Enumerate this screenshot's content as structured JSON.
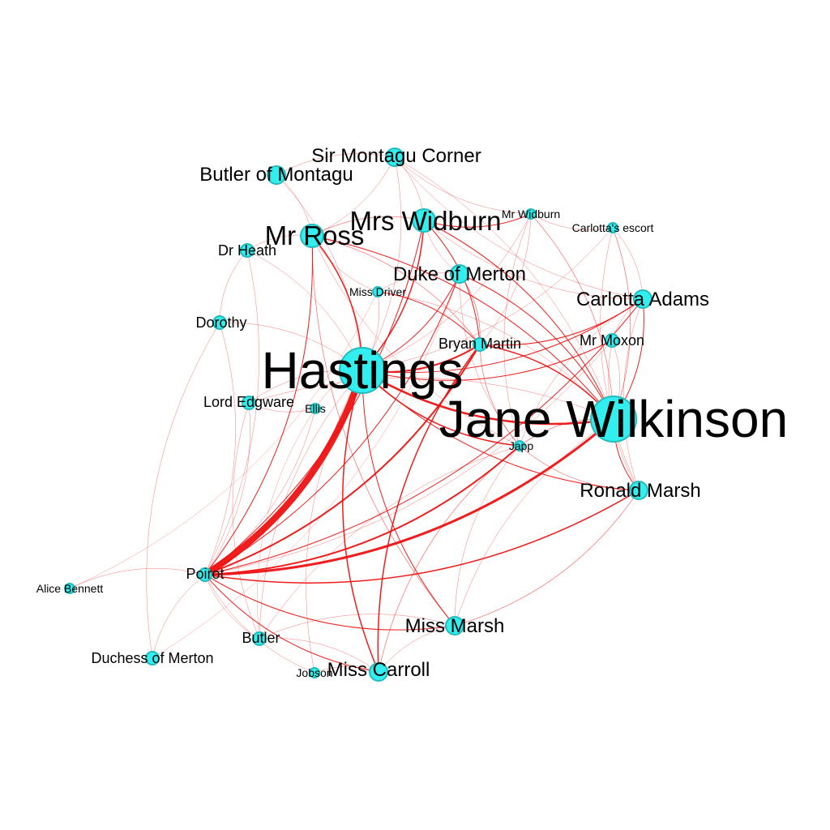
{
  "graph": {
    "colors": {
      "node_fill": "#33eeee",
      "node_stroke": "#22bbbb",
      "edge": "#ee1111",
      "label": "#000000",
      "background": "#ffffff"
    },
    "nodes": [
      {
        "id": "hastings",
        "label": "Hastings",
        "size": "xl"
      },
      {
        "id": "jane",
        "label": "Jane Wilkinson",
        "size": "xl"
      },
      {
        "id": "mrs_widburn",
        "label": "Mrs Widburn",
        "size": "l"
      },
      {
        "id": "mr_ross",
        "label": "Mr Ross",
        "size": "l"
      },
      {
        "id": "miss_marsh",
        "label": "Miss Marsh",
        "size": "m"
      },
      {
        "id": "ronald",
        "label": "Ronald Marsh",
        "size": "m"
      },
      {
        "id": "carlotta",
        "label": "Carlotta Adams",
        "size": "m"
      },
      {
        "id": "duke",
        "label": "Duke of Merton",
        "size": "m"
      },
      {
        "id": "sir_montagu",
        "label": "Sir Montagu Corner",
        "size": "m"
      },
      {
        "id": "butler_montagu",
        "label": "Butler of Montagu",
        "size": "m"
      },
      {
        "id": "miss_carroll",
        "label": "Miss Carroll",
        "size": "m"
      },
      {
        "id": "mr_moxon",
        "label": "Mr Moxon",
        "size": "s"
      },
      {
        "id": "bryan",
        "label": "Bryan Martin",
        "size": "s"
      },
      {
        "id": "poirot",
        "label": "Poirot",
        "size": "s"
      },
      {
        "id": "lord_edgware",
        "label": "Lord Edgware",
        "size": "s"
      },
      {
        "id": "dr_heath",
        "label": "Dr Heath",
        "size": "s"
      },
      {
        "id": "dorothy",
        "label": "Dorothy",
        "size": "s"
      },
      {
        "id": "butler",
        "label": "Butler",
        "size": "s"
      },
      {
        "id": "duchess",
        "label": "Duchess of Merton",
        "size": "s"
      },
      {
        "id": "mr_widburn",
        "label": "Mr Widburn",
        "size": "xs"
      },
      {
        "id": "carlottas_escort",
        "label": "Carlotta's escort",
        "size": "xs"
      },
      {
        "id": "miss_driver",
        "label": "Miss Driver",
        "size": "xs"
      },
      {
        "id": "ellis",
        "label": "Ellis",
        "size": "xs"
      },
      {
        "id": "japp",
        "label": "Japp",
        "size": "xs"
      },
      {
        "id": "alice",
        "label": "Alice Bennett",
        "size": "xs"
      },
      {
        "id": "jobson",
        "label": "Jobson",
        "size": "xs"
      }
    ],
    "edges": [
      {
        "source": "poirot",
        "target": "hastings",
        "weight": 8
      },
      {
        "source": "poirot",
        "target": "jane",
        "weight": 3
      },
      {
        "source": "poirot",
        "target": "bryan",
        "weight": 2
      },
      {
        "source": "poirot",
        "target": "japp",
        "weight": 2
      },
      {
        "source": "poirot",
        "target": "ronald",
        "weight": 1.5
      },
      {
        "source": "poirot",
        "target": "mrs_widburn",
        "weight": 1
      },
      {
        "source": "poirot",
        "target": "carlotta",
        "weight": 1
      },
      {
        "source": "poirot",
        "target": "miss_marsh",
        "weight": 1
      },
      {
        "source": "poirot",
        "target": "mr_ross",
        "weight": 1
      },
      {
        "source": "poirot",
        "target": "duke",
        "weight": 1
      },
      {
        "source": "poirot",
        "target": "miss_carroll",
        "weight": 1
      },
      {
        "source": "poirot",
        "target": "alice",
        "weight": 0.5
      },
      {
        "source": "poirot",
        "target": "duchess",
        "weight": 0.5
      },
      {
        "source": "poirot",
        "target": "butler",
        "weight": 0.5
      },
      {
        "source": "poirot",
        "target": "jobson",
        "weight": 0.5
      },
      {
        "source": "poirot",
        "target": "lord_edgware",
        "weight": 0.5
      },
      {
        "source": "poirot",
        "target": "dorothy",
        "weight": 0.5
      },
      {
        "source": "poirot",
        "target": "dr_heath",
        "weight": 0.5
      },
      {
        "source": "poirot",
        "target": "mr_moxon",
        "weight": 0.5
      },
      {
        "source": "poirot",
        "target": "ellis",
        "weight": 0.5
      },
      {
        "source": "hastings",
        "target": "jane",
        "weight": 2.5
      },
      {
        "source": "hastings",
        "target": "bryan",
        "weight": 2
      },
      {
        "source": "hastings",
        "target": "mrs_widburn",
        "weight": 1.5
      },
      {
        "source": "hastings",
        "target": "mr_ross",
        "weight": 1.5
      },
      {
        "source": "hastings",
        "target": "japp",
        "weight": 1.5
      },
      {
        "source": "hastings",
        "target": "ronald",
        "weight": 1
      },
      {
        "source": "hastings",
        "target": "carlotta",
        "weight": 1
      },
      {
        "source": "hastings",
        "target": "miss_marsh",
        "weight": 1
      },
      {
        "source": "hastings",
        "target": "miss_carroll",
        "weight": 1.5
      },
      {
        "source": "hastings",
        "target": "duke",
        "weight": 1
      },
      {
        "source": "hastings",
        "target": "mr_moxon",
        "weight": 1
      },
      {
        "source": "hastings",
        "target": "miss_driver",
        "weight": 0.5
      },
      {
        "source": "hastings",
        "target": "sir_montagu",
        "weight": 0.5
      },
      {
        "source": "hastings",
        "target": "butler_montagu",
        "weight": 0.5
      },
      {
        "source": "hastings",
        "target": "lord_edgware",
        "weight": 0.5
      },
      {
        "source": "hastings",
        "target": "ellis",
        "weight": 0.5
      },
      {
        "source": "hastings",
        "target": "dr_heath",
        "weight": 0.5
      },
      {
        "source": "hastings",
        "target": "dorothy",
        "weight": 0.5
      },
      {
        "source": "hastings",
        "target": "butler",
        "weight": 0.5
      },
      {
        "source": "hastings",
        "target": "jobson",
        "weight": 0.5
      },
      {
        "source": "hastings",
        "target": "mr_widburn",
        "weight": 0.5
      },
      {
        "source": "hastings",
        "target": "carlottas_escort",
        "weight": 0.5
      },
      {
        "source": "jane",
        "target": "bryan",
        "weight": 1.5
      },
      {
        "source": "jane",
        "target": "mrs_widburn",
        "weight": 1
      },
      {
        "source": "jane",
        "target": "mr_ross",
        "weight": 1
      },
      {
        "source": "jane",
        "target": "carlotta",
        "weight": 1
      },
      {
        "source": "jane",
        "target": "ronald",
        "weight": 1
      },
      {
        "source": "jane",
        "target": "duke",
        "weight": 1
      },
      {
        "source": "jane",
        "target": "mr_widburn",
        "weight": 0.8
      },
      {
        "source": "jane",
        "target": "carlottas_escort",
        "weight": 0.8
      },
      {
        "source": "jane",
        "target": "miss_driver",
        "weight": 0.5
      },
      {
        "source": "jane",
        "target": "sir_montagu",
        "weight": 0.5
      },
      {
        "source": "jane",
        "target": "japp",
        "weight": 0.8
      },
      {
        "source": "jane",
        "target": "miss_marsh",
        "weight": 0.5
      },
      {
        "source": "jane",
        "target": "mr_moxon",
        "weight": 0.5
      },
      {
        "source": "jane",
        "target": "lord_edgware",
        "weight": 0.5
      },
      {
        "source": "bryan",
        "target": "mrs_widburn",
        "weight": 1
      },
      {
        "source": "bryan",
        "target": "miss_carroll",
        "weight": 1.5
      },
      {
        "source": "bryan",
        "target": "carlotta",
        "weight": 1
      },
      {
        "source": "bryan",
        "target": "miss_driver",
        "weight": 1
      },
      {
        "source": "bryan",
        "target": "duke",
        "weight": 0.8
      },
      {
        "source": "bryan",
        "target": "mr_widburn",
        "weight": 0.5
      },
      {
        "source": "bryan",
        "target": "japp",
        "weight": 0.8
      },
      {
        "source": "bryan",
        "target": "mr_ross",
        "weight": 0.8
      },
      {
        "source": "mrs_widburn",
        "target": "mr_widburn",
        "weight": 1
      },
      {
        "source": "mrs_widburn",
        "target": "mr_ross",
        "weight": 0.8
      },
      {
        "source": "mrs_widburn",
        "target": "sir_montagu",
        "weight": 0.5
      },
      {
        "source": "mrs_widburn",
        "target": "duke",
        "weight": 0.5
      },
      {
        "source": "mrs_widburn",
        "target": "carlotta",
        "weight": 0.5
      },
      {
        "source": "mr_ross",
        "target": "sir_montagu",
        "weight": 0.5
      },
      {
        "source": "mr_ross",
        "target": "butler_montagu",
        "weight": 0.5
      },
      {
        "source": "mr_ross",
        "target": "miss_driver",
        "weight": 0.5
      },
      {
        "source": "mr_ross",
        "target": "miss_marsh",
        "weight": 0.8
      },
      {
        "source": "mr_ross",
        "target": "japp",
        "weight": 0.5
      },
      {
        "source": "mr_ross",
        "target": "dr_heath",
        "weight": 0.5
      },
      {
        "source": "sir_montagu",
        "target": "butler_montagu",
        "weight": 0.5
      },
      {
        "source": "sir_montagu",
        "target": "carlotta",
        "weight": 0.5
      },
      {
        "source": "sir_montagu",
        "target": "mr_widburn",
        "weight": 0.5
      },
      {
        "source": "carlotta",
        "target": "carlottas_escort",
        "weight": 0.5
      },
      {
        "source": "carlotta",
        "target": "ronald",
        "weight": 0.5
      },
      {
        "source": "carlotta",
        "target": "mr_moxon",
        "weight": 0.5
      },
      {
        "source": "carlotta",
        "target": "japp",
        "weight": 0.5
      },
      {
        "source": "mr_widburn",
        "target": "carlottas_escort",
        "weight": 0.5
      },
      {
        "source": "mr_widburn",
        "target": "japp",
        "weight": 0.5
      },
      {
        "source": "duke",
        "target": "japp",
        "weight": 0.5
      },
      {
        "source": "duke",
        "target": "miss_driver",
        "weight": 0.5
      },
      {
        "source": "japp",
        "target": "ronald",
        "weight": 0.8
      },
      {
        "source": "japp",
        "target": "miss_carroll",
        "weight": 0.8
      },
      {
        "source": "japp",
        "target": "miss_marsh",
        "weight": 0.5
      },
      {
        "source": "japp",
        "target": "butler",
        "weight": 0.5
      },
      {
        "source": "miss_marsh",
        "target": "ronald",
        "weight": 0.8
      },
      {
        "source": "miss_marsh",
        "target": "miss_carroll",
        "weight": 0.5
      },
      {
        "source": "miss_marsh",
        "target": "butler",
        "weight": 0.5
      },
      {
        "source": "miss_carroll",
        "target": "butler",
        "weight": 0.5
      },
      {
        "source": "miss_carroll",
        "target": "jobson",
        "weight": 0.5
      },
      {
        "source": "lord_edgware",
        "target": "ellis",
        "weight": 0.5
      },
      {
        "source": "lord_edgware",
        "target": "butler",
        "weight": 0.5
      },
      {
        "source": "dr_heath",
        "target": "dorothy",
        "weight": 0.5
      },
      {
        "source": "dorothy",
        "target": "duchess",
        "weight": 0.5
      },
      {
        "source": "alice",
        "target": "miss_driver",
        "weight": 0.4
      },
      {
        "source": "duchess",
        "target": "duke",
        "weight": 0.4
      },
      {
        "source": "ellis",
        "target": "butler",
        "weight": 0.4
      },
      {
        "source": "mr_moxon",
        "target": "ronald",
        "weight": 0.5
      },
      {
        "source": "carlottas_escort",
        "target": "ronald",
        "weight": 0.5
      }
    ]
  }
}
